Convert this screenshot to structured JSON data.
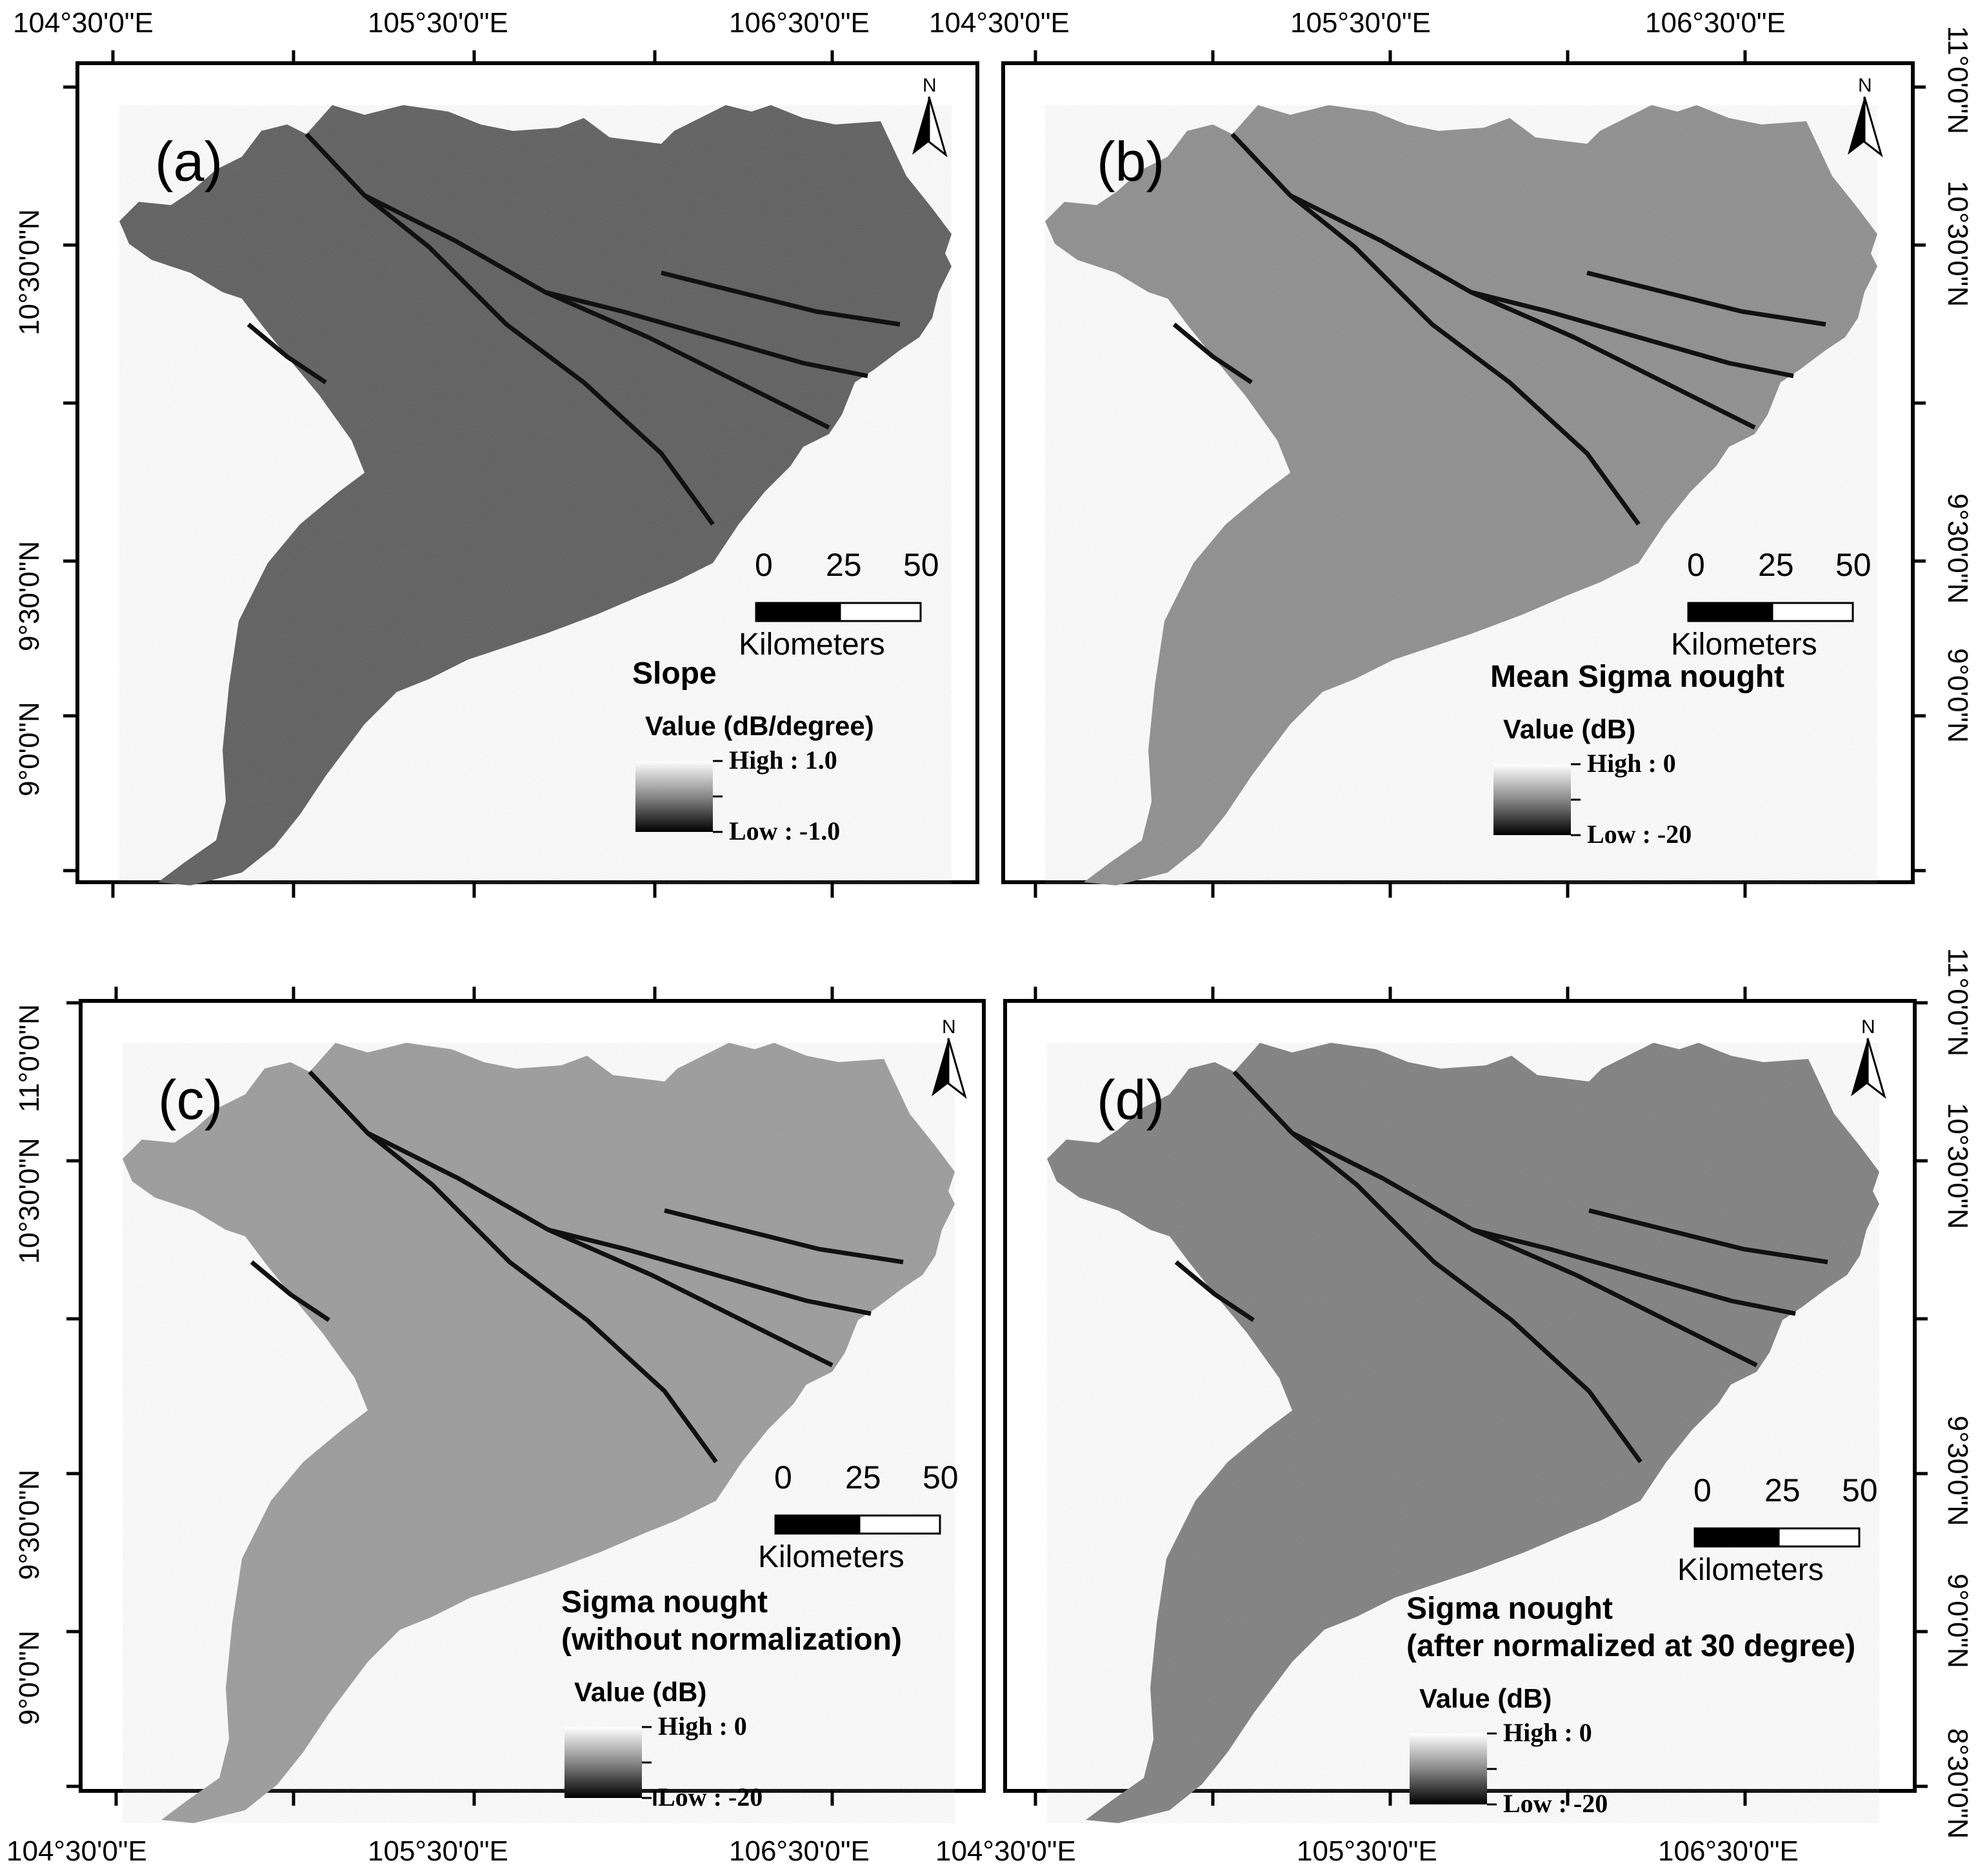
{
  "figure": {
    "longitude_labels": [
      "104°30'0\"E",
      "105°30'0\"E",
      "106°30'0\"E"
    ],
    "latitude_labels": [
      "11°0'0\"N",
      "10°30'0\"N",
      "9°30'0\"N",
      "9°0'0\"N",
      "8°30'0\"N"
    ],
    "north_label": "N",
    "scale_numbers": [
      "0",
      "25",
      "50"
    ],
    "scale_unit": "Kilometers"
  },
  "panels": [
    {
      "id": "a",
      "label": "(a)",
      "title": "Slope",
      "subtitle": "",
      "value_label": "Value (dB/degree)",
      "high": "High : 1.0",
      "low": "Low : -1.0",
      "tone": "#5a5a5a"
    },
    {
      "id": "b",
      "label": "(b)",
      "title": "Mean Sigma nought",
      "subtitle": "",
      "value_label": "Value (dB)",
      "high": "High : 0",
      "low": "Low : -20",
      "tone": "#8c8c8c"
    },
    {
      "id": "c",
      "label": "(c)",
      "title": "Sigma nought",
      "subtitle": "(without normalization)",
      "value_label": "Value (dB)",
      "high": "High : 0",
      "low": "Low : -20",
      "tone": "#9a9a9a"
    },
    {
      "id": "d",
      "label": "(d)",
      "title": "Sigma nought",
      "subtitle": "(after normalized at 30 degree)",
      "value_label": "Value (dB)",
      "high": "High : 0",
      "low": "Low : -20",
      "tone": "#7d7d7d"
    }
  ]
}
